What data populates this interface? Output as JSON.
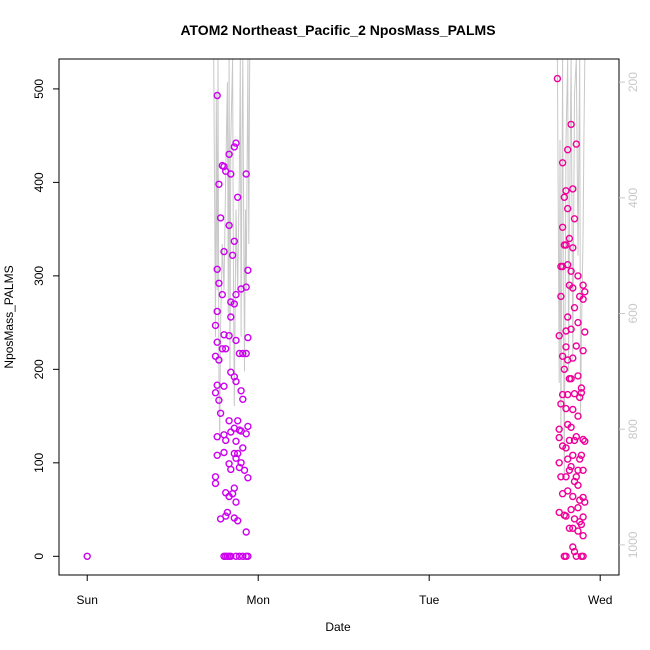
{
  "chart_data": {
    "type": "scatter",
    "title": "ATOM2 Northeast_Pacific_2 NposMass_PALMS",
    "xlabel": "Date",
    "ylabel": "NposMass_PALMS",
    "x_unit": "days since Sun 00:00",
    "x_ticks": [
      {
        "value": 0,
        "label": "Sun"
      },
      {
        "value": 1,
        "label": "Mon"
      },
      {
        "value": 2,
        "label": "Tue"
      },
      {
        "value": 3,
        "label": "Wed"
      }
    ],
    "xlim": [
      -0.165,
      3.11
    ],
    "ylim": [
      -20,
      532
    ],
    "y_ticks": [
      0,
      100,
      200,
      300,
      400,
      500
    ],
    "y2_label": "",
    "y2_ticks": [
      200,
      400,
      600,
      800,
      1000
    ],
    "y2lim": [
      1052,
      160
    ],
    "y2_reversed": true,
    "grid": false,
    "colors": {
      "early": "#cc00ee",
      "late": "#ee0099",
      "pressure_line": "#c8c8c8"
    },
    "series": [
      {
        "color_key": "early",
        "points": [
          [
            0.0,
            0
          ],
          [
            0.76,
            493
          ],
          [
            0.77,
            398
          ],
          [
            0.78,
            362
          ],
          [
            0.76,
            307
          ],
          [
            0.77,
            292
          ],
          [
            0.76,
            262
          ],
          [
            0.75,
            247
          ],
          [
            0.76,
            229
          ],
          [
            0.75,
            214
          ],
          [
            0.77,
            210
          ],
          [
            0.76,
            183
          ],
          [
            0.75,
            175
          ],
          [
            0.77,
            167
          ],
          [
            0.78,
            153
          ],
          [
            0.76,
            128
          ],
          [
            0.76,
            108
          ],
          [
            0.75,
            85
          ],
          [
            0.75,
            78
          ],
          [
            0.78,
            40
          ],
          [
            0.79,
            418
          ],
          [
            0.8,
            417
          ],
          [
            0.81,
            412
          ],
          [
            0.8,
            326
          ],
          [
            0.79,
            280
          ],
          [
            0.8,
            237
          ],
          [
            0.79,
            222
          ],
          [
            0.81,
            222
          ],
          [
            0.8,
            182
          ],
          [
            0.8,
            130
          ],
          [
            0.81,
            124
          ],
          [
            0.8,
            111
          ],
          [
            0.81,
            68
          ],
          [
            0.81,
            43
          ],
          [
            0.82,
            47
          ],
          [
            0.83,
            430
          ],
          [
            0.84,
            409
          ],
          [
            0.83,
            354
          ],
          [
            0.85,
            322
          ],
          [
            0.84,
            272
          ],
          [
            0.84,
            256
          ],
          [
            0.83,
            236
          ],
          [
            0.84,
            197
          ],
          [
            0.83,
            145
          ],
          [
            0.84,
            133
          ],
          [
            0.83,
            99
          ],
          [
            0.84,
            93
          ],
          [
            0.83,
            64
          ],
          [
            0.85,
            67
          ],
          [
            0.86,
            438
          ],
          [
            0.87,
            442
          ],
          [
            0.86,
            337
          ],
          [
            0.87,
            280
          ],
          [
            0.86,
            270
          ],
          [
            0.87,
            231
          ],
          [
            0.86,
            192
          ],
          [
            0.87,
            187
          ],
          [
            0.86,
            137
          ],
          [
            0.87,
            123
          ],
          [
            0.86,
            110
          ],
          [
            0.87,
            105
          ],
          [
            0.86,
            73
          ],
          [
            0.87,
            58
          ],
          [
            0.86,
            41
          ],
          [
            0.88,
            384
          ],
          [
            0.89,
            217
          ],
          [
            0.88,
            145
          ],
          [
            0.89,
            135
          ],
          [
            0.88,
            110
          ],
          [
            0.89,
            95
          ],
          [
            0.88,
            38
          ],
          [
            0.9,
            286
          ],
          [
            0.91,
            217
          ],
          [
            0.9,
            177
          ],
          [
            0.91,
            168
          ],
          [
            0.9,
            134
          ],
          [
            0.91,
            116
          ],
          [
            0.9,
            100
          ],
          [
            0.93,
            409
          ],
          [
            0.94,
            306
          ],
          [
            0.93,
            288
          ],
          [
            0.94,
            234
          ],
          [
            0.93,
            217
          ],
          [
            0.94,
            139
          ],
          [
            0.93,
            131
          ],
          [
            0.94,
            84
          ],
          [
            0.92,
            92
          ],
          [
            0.93,
            26
          ],
          [
            0.8,
            0
          ],
          [
            0.81,
            0
          ],
          [
            0.82,
            0
          ],
          [
            0.83,
            0
          ],
          [
            0.84,
            0
          ],
          [
            0.87,
            0
          ],
          [
            0.89,
            0
          ],
          [
            0.91,
            0
          ],
          [
            0.93,
            0
          ],
          [
            0.94,
            0
          ]
        ]
      },
      {
        "color_key": "late",
        "points": [
          [
            2.75,
            511
          ],
          [
            2.78,
            421
          ],
          [
            2.79,
            384
          ],
          [
            2.78,
            352
          ],
          [
            2.79,
            333
          ],
          [
            2.77,
            310
          ],
          [
            2.78,
            310
          ],
          [
            2.77,
            278
          ],
          [
            2.76,
            236
          ],
          [
            2.78,
            214
          ],
          [
            2.79,
            200
          ],
          [
            2.78,
            173
          ],
          [
            2.77,
            163
          ],
          [
            2.76,
            136
          ],
          [
            2.76,
            127
          ],
          [
            2.78,
            118
          ],
          [
            2.76,
            100
          ],
          [
            2.77,
            85
          ],
          [
            2.78,
            67
          ],
          [
            2.76,
            47
          ],
          [
            2.79,
            44
          ],
          [
            2.8,
            391
          ],
          [
            2.81,
            435
          ],
          [
            2.81,
            372
          ],
          [
            2.82,
            340
          ],
          [
            2.8,
            333
          ],
          [
            2.81,
            312
          ],
          [
            2.82,
            290
          ],
          [
            2.81,
            256
          ],
          [
            2.8,
            241
          ],
          [
            2.8,
            224
          ],
          [
            2.81,
            210
          ],
          [
            2.82,
            190
          ],
          [
            2.81,
            173
          ],
          [
            2.8,
            158
          ],
          [
            2.81,
            141
          ],
          [
            2.82,
            124
          ],
          [
            2.8,
            116
          ],
          [
            2.81,
            104
          ],
          [
            2.82,
            92
          ],
          [
            2.8,
            85
          ],
          [
            2.81,
            70
          ],
          [
            2.8,
            43
          ],
          [
            2.82,
            30
          ],
          [
            2.83,
            462
          ],
          [
            2.84,
            393
          ],
          [
            2.85,
            361
          ],
          [
            2.84,
            330
          ],
          [
            2.83,
            305
          ],
          [
            2.84,
            287
          ],
          [
            2.85,
            266
          ],
          [
            2.83,
            243
          ],
          [
            2.84,
            212
          ],
          [
            2.83,
            190
          ],
          [
            2.85,
            174
          ],
          [
            2.84,
            157
          ],
          [
            2.83,
            138
          ],
          [
            2.85,
            124
          ],
          [
            2.84,
            108
          ],
          [
            2.83,
            96
          ],
          [
            2.85,
            80
          ],
          [
            2.84,
            64
          ],
          [
            2.83,
            50
          ],
          [
            2.85,
            40
          ],
          [
            2.84,
            30
          ],
          [
            2.84,
            10
          ],
          [
            2.85,
            5
          ],
          [
            2.86,
            441
          ],
          [
            2.87,
            300
          ],
          [
            2.88,
            278
          ],
          [
            2.87,
            250
          ],
          [
            2.86,
            225
          ],
          [
            2.87,
            193
          ],
          [
            2.88,
            170
          ],
          [
            2.87,
            150
          ],
          [
            2.86,
            128
          ],
          [
            2.88,
            104
          ],
          [
            2.87,
            92
          ],
          [
            2.86,
            85
          ],
          [
            2.87,
            76
          ],
          [
            2.88,
            60
          ],
          [
            2.87,
            52
          ],
          [
            2.88,
            37
          ],
          [
            2.87,
            27
          ],
          [
            2.9,
            290
          ],
          [
            2.91,
            283
          ],
          [
            2.9,
            275
          ],
          [
            2.91,
            240
          ],
          [
            2.9,
            220
          ],
          [
            2.89,
            180
          ],
          [
            2.89,
            175
          ],
          [
            2.9,
            125
          ],
          [
            2.91,
            123
          ],
          [
            2.89,
            108
          ],
          [
            2.9,
            92
          ],
          [
            2.9,
            63
          ],
          [
            2.91,
            58
          ],
          [
            2.9,
            42
          ],
          [
            2.89,
            34
          ],
          [
            2.9,
            22
          ],
          [
            2.79,
            0
          ],
          [
            2.8,
            0
          ],
          [
            2.86,
            0
          ],
          [
            2.89,
            0
          ],
          [
            2.9,
            0
          ]
        ]
      }
    ],
    "pressure_series": [
      [
        0.74,
        160
      ],
      [
        0.75,
        640
      ],
      [
        0.755,
        220
      ],
      [
        0.76,
        560
      ],
      [
        0.765,
        160
      ],
      [
        0.77,
        700
      ],
      [
        0.775,
        820
      ],
      [
        0.78,
        620
      ],
      [
        0.79,
        480
      ],
      [
        0.8,
        560
      ],
      [
        0.81,
        360
      ],
      [
        0.82,
        200
      ],
      [
        0.825,
        600
      ],
      [
        0.83,
        160
      ],
      [
        0.835,
        700
      ],
      [
        0.84,
        300
      ],
      [
        0.85,
        160
      ],
      [
        0.855,
        520
      ],
      [
        0.86,
        760
      ],
      [
        0.87,
        420
      ],
      [
        0.88,
        560
      ],
      [
        0.89,
        350
      ],
      [
        0.895,
        160
      ],
      [
        0.9,
        640
      ],
      [
        0.905,
        300
      ],
      [
        0.91,
        160
      ],
      [
        0.92,
        700
      ],
      [
        0.925,
        420
      ],
      [
        0.93,
        560
      ],
      [
        0.94,
        160
      ],
      [
        0.945,
        480
      ],
      [
        0.95,
        160
      ],
      [
        2.75,
        160
      ],
      [
        2.76,
        720
      ],
      [
        2.765,
        300
      ],
      [
        2.77,
        820
      ],
      [
        2.78,
        160
      ],
      [
        2.785,
        600
      ],
      [
        2.79,
        880
      ],
      [
        2.8,
        300
      ],
      [
        2.81,
        160
      ],
      [
        2.815,
        700
      ],
      [
        2.82,
        460
      ],
      [
        2.83,
        160
      ],
      [
        2.84,
        680
      ],
      [
        2.85,
        220
      ],
      [
        2.86,
        160
      ],
      [
        2.87,
        500
      ],
      [
        2.88,
        160
      ],
      [
        2.885,
        780
      ],
      [
        2.89,
        640
      ],
      [
        2.9,
        460
      ],
      [
        2.905,
        300
      ],
      [
        2.91,
        160
      ]
    ]
  }
}
